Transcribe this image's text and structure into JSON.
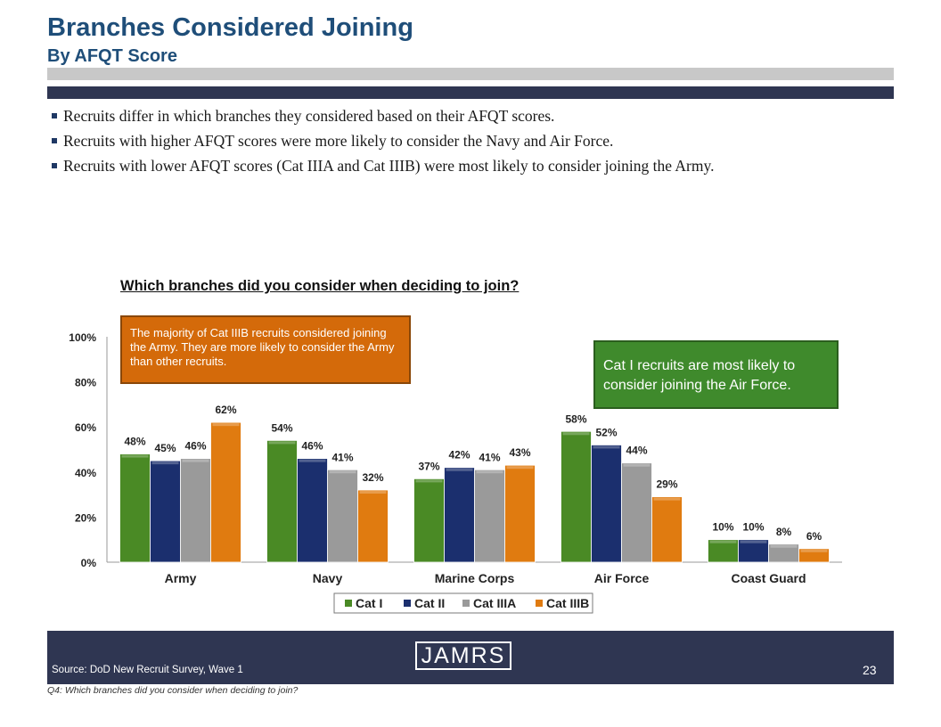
{
  "header": {
    "title": "Branches Considered Joining",
    "subtitle": "By AFQT Score"
  },
  "bullets": [
    "Recruits differ in which branches they considered based on their AFQT scores.",
    "Recruits with higher AFQT scores were more likely to consider the Navy and Air Force.",
    "Recruits with lower AFQT scores (Cat IIIA and Cat IIIB) were most likely to consider joining the Army."
  ],
  "callouts": {
    "orange": "The majority of Cat IIIB recruits considered joining the Army.  They are more likely to consider the Army than other recruits.",
    "green": "Cat I recruits are most likely to consider joining the Air Force.",
    "orange_color": "#d46a0a",
    "green_color": "#3f8a2c"
  },
  "chart_data": {
    "type": "bar",
    "title": "Which branches did you consider when deciding to join?",
    "categories": [
      "Army",
      "Navy",
      "Marine Corps",
      "Air Force",
      "Coast Guard"
    ],
    "series": [
      {
        "name": "Cat I",
        "color": "#4a8a25",
        "values": [
          48,
          54,
          37,
          58,
          10
        ]
      },
      {
        "name": "Cat II",
        "color": "#1b2f6e",
        "values": [
          45,
          46,
          42,
          52,
          10
        ]
      },
      {
        "name": "Cat IIIA",
        "color": "#9a9a9a",
        "values": [
          46,
          41,
          41,
          44,
          8
        ]
      },
      {
        "name": "Cat IIIB",
        "color": "#e07b10",
        "values": [
          62,
          32,
          43,
          29,
          6
        ]
      }
    ],
    "yticks": [
      "0%",
      "20%",
      "40%",
      "60%",
      "80%",
      "100%"
    ],
    "ylim": [
      0,
      100
    ],
    "legend_position": "bottom",
    "grid": false
  },
  "footer": {
    "logo": "JAMRS",
    "source": "Source:  DoD New Recruit Survey, Wave 1",
    "page_number": "23",
    "question": "Q4:  Which branches did you consider when deciding to join?"
  }
}
